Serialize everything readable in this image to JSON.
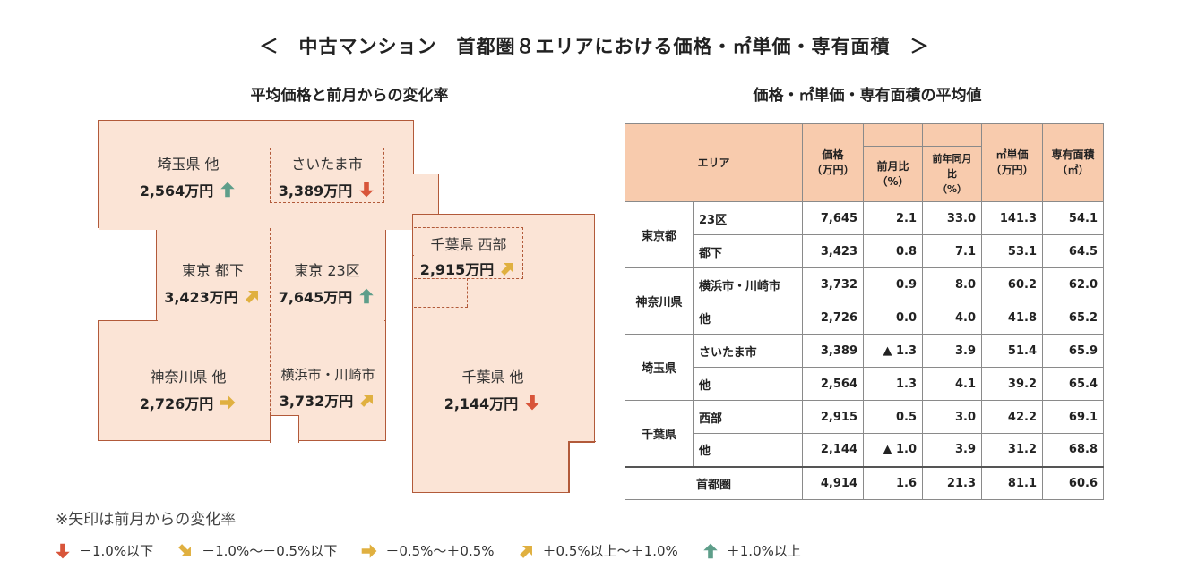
{
  "title": "＜　中古マンション　首都圏８エリアにおける価格・㎡単価・専有面積　＞",
  "map": {
    "subtitle": "平均価格と前月からの変化率",
    "regions": {
      "saitama_other": {
        "name": "埼玉県 他",
        "price": "2,564万円",
        "arrow": "up"
      },
      "saitama_city": {
        "name": "さいたま市",
        "price": "3,389万円",
        "arrow": "down"
      },
      "tokyo_toka": {
        "name": "東京 都下",
        "price": "3,423万円",
        "arrow": "up-right"
      },
      "tokyo_23": {
        "name": "東京 23区",
        "price": "7,645万円",
        "arrow": "up"
      },
      "chiba_west": {
        "name": "千葉県 西部",
        "price": "2,915万円",
        "arrow": "up-right"
      },
      "kanagawa_other": {
        "name": "神奈川県 他",
        "price": "2,726万円",
        "arrow": "right"
      },
      "yokohama": {
        "name": "横浜市・川崎市",
        "price": "3,732万円",
        "arrow": "up-right"
      },
      "chiba_other": {
        "name": "千葉県 他",
        "price": "2,144万円",
        "arrow": "down"
      }
    }
  },
  "arrow_colors": {
    "down": "#d8553a",
    "down-right": "#e0b040",
    "right": "#e0b040",
    "up-right": "#e0b040",
    "up": "#5e9e8a"
  },
  "table": {
    "subtitle": "価格・㎡単価・専有面積の平均値",
    "headers": {
      "area": "エリア",
      "price": [
        "価格",
        "（万円）"
      ],
      "mom": [
        "前月比",
        "（%）"
      ],
      "yoy": [
        "前年同月比",
        "（%）"
      ],
      "unit_price": [
        "㎡単価",
        "（万円）"
      ],
      "floor_area": [
        "専有面積",
        "（㎡）"
      ]
    },
    "groups": [
      {
        "name": "東京都",
        "rows": [
          {
            "sub": "23区",
            "price": "7,645",
            "mom": "2.1",
            "yoy": "33.0",
            "unit": "141.3",
            "area": "54.1"
          },
          {
            "sub": "都下",
            "price": "3,423",
            "mom": "0.8",
            "yoy": "7.1",
            "unit": "53.1",
            "area": "64.5"
          }
        ]
      },
      {
        "name": "神奈川県",
        "rows": [
          {
            "sub": "横浜市・川崎市",
            "price": "3,732",
            "mom": "0.9",
            "yoy": "8.0",
            "unit": "60.2",
            "area": "62.0"
          },
          {
            "sub": "他",
            "price": "2,726",
            "mom": "0.0",
            "yoy": "4.0",
            "unit": "41.8",
            "area": "65.2"
          }
        ]
      },
      {
        "name": "埼玉県",
        "rows": [
          {
            "sub": "さいたま市",
            "price": "3,389",
            "mom": "▲ 1.3",
            "yoy": "3.9",
            "unit": "51.4",
            "area": "65.9"
          },
          {
            "sub": "他",
            "price": "2,564",
            "mom": "1.3",
            "yoy": "4.1",
            "unit": "39.2",
            "area": "65.4"
          }
        ]
      },
      {
        "name": "千葉県",
        "rows": [
          {
            "sub": "西部",
            "price": "2,915",
            "mom": "0.5",
            "yoy": "3.0",
            "unit": "42.2",
            "area": "69.1"
          },
          {
            "sub": "他",
            "price": "2,144",
            "mom": "▲ 1.0",
            "yoy": "3.9",
            "unit": "31.2",
            "area": "68.8"
          }
        ]
      }
    ],
    "total": {
      "sub": "首都圏",
      "price": "4,914",
      "mom": "1.6",
      "yoy": "21.3",
      "unit": "81.1",
      "area": "60.6"
    }
  },
  "note": "※矢印は前月からの変化率",
  "legend": [
    {
      "arrow": "down",
      "label": "－1.0%以下"
    },
    {
      "arrow": "down-right",
      "label": "－1.0%～－0.5%以下"
    },
    {
      "arrow": "right",
      "label": "－0.5%～＋0.5%"
    },
    {
      "arrow": "up-right",
      "label": "＋0.5%以上～＋1.0%"
    },
    {
      "arrow": "up",
      "label": "＋1.0%以上"
    }
  ]
}
